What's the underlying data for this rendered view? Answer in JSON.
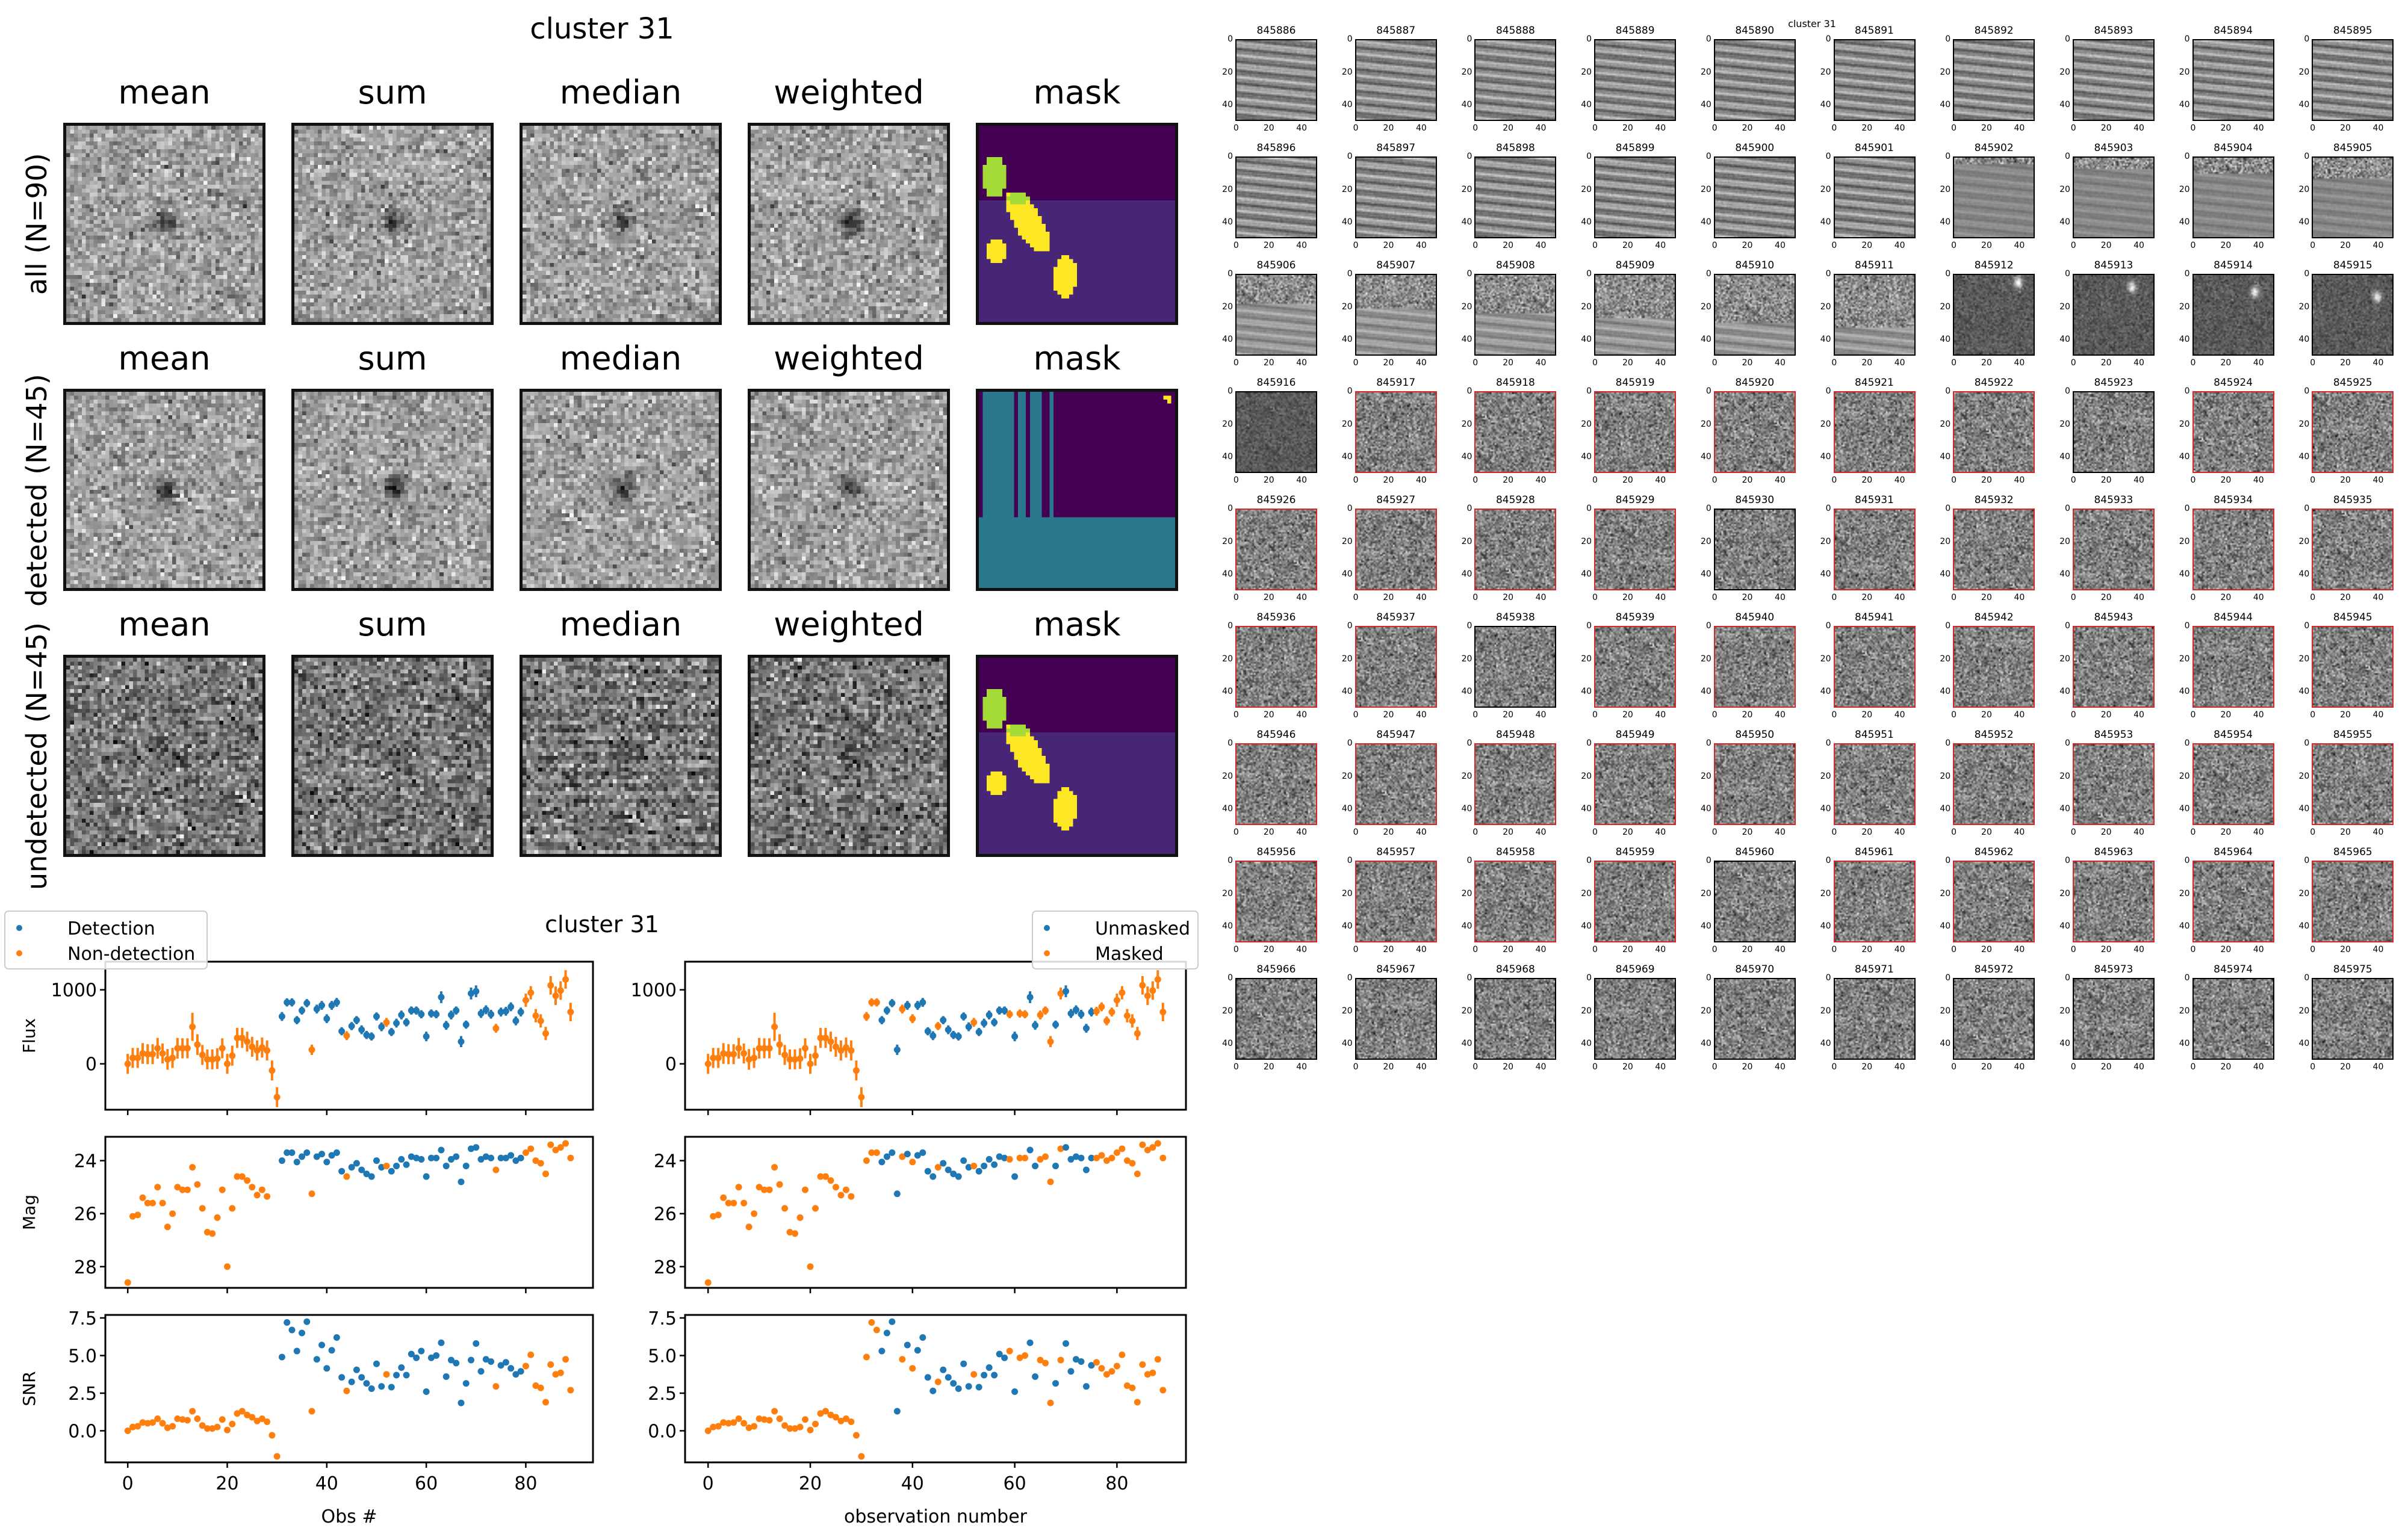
{
  "figure": {
    "title": "cluster 31",
    "grid_title": "cluster 31"
  },
  "stamps": {
    "columns": [
      "mean",
      "sum",
      "median",
      "weighted",
      "mask"
    ],
    "rows": [
      {
        "label": "all (N=90)",
        "mask_style": "blobs"
      },
      {
        "label": "detected (N=45)",
        "mask_style": "stripes"
      },
      {
        "label": "undetected (N=45)",
        "mask_style": "blobs"
      }
    ],
    "colors": {
      "mask_bg_dark": "#440154",
      "mask_bg_mid": "#482677",
      "mask_teal": "#2a788e",
      "mask_green": "#a5db36",
      "mask_yellow": "#fde725"
    }
  },
  "chart_data": [
    {
      "type": "scatter",
      "panel": "left-flux",
      "ylabel": "Flux",
      "yticks": [
        0,
        1000
      ],
      "xlim": [
        -4.5,
        93.5
      ],
      "ylim": [
        -620,
        1380
      ],
      "legend": {
        "position": "top-left",
        "entries": [
          "Detection",
          "Non-detection"
        ]
      },
      "series_colors": {
        "Detection": "#1f77b4",
        "Non-detection": "#ff7f0e"
      }
    },
    {
      "type": "scatter",
      "panel": "left-mag",
      "ylabel": "Mag",
      "yticks": [
        24,
        26,
        28
      ],
      "ylim_inverted": [
        28.8,
        23.1
      ]
    },
    {
      "type": "scatter",
      "panel": "left-snr",
      "ylabel": "SNR",
      "xlabel": "Obs #",
      "yticks": [
        0.0,
        2.5,
        5.0,
        7.5
      ],
      "xticks": [
        0,
        20,
        40,
        60,
        80
      ],
      "ylim": [
        -2.1,
        7.7
      ]
    },
    {
      "type": "scatter",
      "panel": "right-flux",
      "yticks": [
        0,
        1000
      ],
      "legend": {
        "position": "top-right",
        "entries": [
          "Unmasked",
          "Masked"
        ]
      },
      "series_colors": {
        "Unmasked": "#1f77b4",
        "Masked": "#ff7f0e"
      }
    },
    {
      "type": "scatter",
      "panel": "right-mag",
      "yticks": [
        24,
        26,
        28
      ]
    },
    {
      "type": "scatter",
      "panel": "right-snr",
      "xlabel": "observation number",
      "yticks": [
        0.0,
        2.5,
        5.0,
        7.5
      ],
      "xticks": [
        0,
        20,
        40,
        60,
        80
      ]
    },
    {
      "type": "scatter",
      "name": "lightcurve",
      "x": [
        0,
        1,
        2,
        3,
        4,
        5,
        6,
        7,
        8,
        9,
        10,
        11,
        12,
        13,
        14,
        15,
        16,
        17,
        18,
        19,
        20,
        21,
        22,
        23,
        24,
        25,
        26,
        27,
        28,
        29,
        30,
        31,
        32,
        33,
        34,
        35,
        36,
        37,
        38,
        39,
        40,
        41,
        42,
        43,
        44,
        45,
        46,
        47,
        48,
        49,
        50,
        51,
        52,
        53,
        54,
        55,
        56,
        57,
        58,
        59,
        60,
        61,
        62,
        63,
        64,
        65,
        66,
        67,
        68,
        69,
        70,
        71,
        72,
        73,
        74,
        75,
        76,
        77,
        78,
        79,
        80,
        81,
        82,
        83,
        84,
        85,
        86,
        87,
        88,
        89
      ],
      "flux": [
        0,
        80,
        80,
        140,
        130,
        130,
        210,
        140,
        60,
        80,
        210,
        210,
        210,
        500,
        260,
        120,
        60,
        60,
        70,
        210,
        0,
        110,
        350,
        350,
        300,
        230,
        180,
        220,
        180,
        -90,
        -450,
        640,
        830,
        830,
        590,
        720,
        820,
        190,
        740,
        790,
        610,
        790,
        830,
        440,
        380,
        510,
        590,
        460,
        390,
        370,
        640,
        500,
        560,
        430,
        550,
        660,
        560,
        720,
        720,
        670,
        370,
        680,
        670,
        900,
        520,
        660,
        720,
        300,
        530,
        950,
        980,
        680,
        730,
        670,
        480,
        700,
        710,
        770,
        580,
        700,
        860,
        960,
        650,
        580,
        410,
        1060,
        920,
        990,
        1140,
        700
      ],
      "flux_err": [
        270,
        270,
        270,
        280,
        270,
        270,
        280,
        270,
        280,
        270,
        280,
        270,
        270,
        380,
        280,
        270,
        270,
        270,
        280,
        270,
        270,
        270,
        270,
        270,
        270,
        270,
        270,
        270,
        270,
        270,
        270,
        120,
        110,
        110,
        110,
        110,
        110,
        140,
        120,
        120,
        120,
        120,
        120,
        110,
        120,
        110,
        110,
        120,
        110,
        110,
        110,
        120,
        120,
        110,
        120,
        120,
        110,
        110,
        110,
        110,
        130,
        110,
        110,
        160,
        120,
        120,
        110,
        150,
        110,
        160,
        160,
        120,
        120,
        120,
        120,
        120,
        120,
        120,
        120,
        120,
        180,
        180,
        180,
        180,
        180,
        250,
        250,
        250,
        250,
        250
      ],
      "mag": [
        28.6,
        26.1,
        26.05,
        25.4,
        25.6,
        25.6,
        25.0,
        25.6,
        26.5,
        26.0,
        25.0,
        25.1,
        25.1,
        24.25,
        24.9,
        25.8,
        26.7,
        26.75,
        26.15,
        25.1,
        28.0,
        25.8,
        24.6,
        24.6,
        24.75,
        25.0,
        25.3,
        25.1,
        25.35,
        null,
        null,
        24.0,
        23.7,
        23.7,
        24.05,
        23.85,
        23.7,
        25.25,
        23.85,
        23.75,
        24.05,
        23.8,
        23.7,
        24.4,
        24.6,
        24.25,
        24.1,
        24.35,
        24.5,
        24.6,
        24.0,
        24.25,
        24.2,
        24.4,
        24.2,
        23.95,
        24.15,
        23.85,
        23.9,
        23.95,
        24.6,
        23.9,
        23.9,
        23.6,
        24.2,
        23.95,
        23.85,
        24.8,
        24.2,
        23.55,
        23.5,
        23.95,
        23.85,
        23.9,
        24.35,
        23.9,
        23.9,
        23.8,
        24.0,
        23.9,
        23.7,
        23.55,
        24.0,
        24.1,
        24.5,
        23.4,
        23.6,
        23.5,
        23.35,
        23.9
      ],
      "snr": [
        0,
        0.25,
        0.3,
        0.55,
        0.5,
        0.55,
        0.8,
        0.5,
        0.2,
        0.3,
        0.8,
        0.75,
        0.7,
        1.3,
        0.8,
        0.35,
        0.15,
        0.15,
        0.25,
        0.75,
        0.05,
        0.45,
        1.15,
        1.3,
        1.05,
        0.9,
        0.65,
        0.8,
        0.6,
        -0.3,
        -1.7,
        4.9,
        7.2,
        6.7,
        5.3,
        6.5,
        7.25,
        1.3,
        4.75,
        5.7,
        4.15,
        5.35,
        6.2,
        3.55,
        2.65,
        3.25,
        4.05,
        3.55,
        3.15,
        2.8,
        4.45,
        2.95,
        3.75,
        2.9,
        3.7,
        4.2,
        3.7,
        5.1,
        4.85,
        5.3,
        2.6,
        4.85,
        5.0,
        5.85,
        3.6,
        4.7,
        4.5,
        1.85,
        3.15,
        4.7,
        5.8,
        3.95,
        4.75,
        4.6,
        2.95,
        4.35,
        4.55,
        4.15,
        3.75,
        3.95,
        4.3,
        5.05,
        3.0,
        2.85,
        1.9,
        4.4,
        3.75,
        3.85,
        4.75,
        2.7
      ],
      "detected": [
        0,
        0,
        0,
        0,
        0,
        0,
        0,
        0,
        0,
        0,
        0,
        0,
        0,
        0,
        0,
        0,
        0,
        0,
        0,
        0,
        0,
        0,
        0,
        0,
        0,
        0,
        0,
        0,
        0,
        0,
        0,
        1,
        1,
        1,
        1,
        1,
        1,
        0,
        1,
        1,
        1,
        1,
        1,
        1,
        0,
        1,
        1,
        1,
        1,
        1,
        1,
        1,
        0,
        1,
        1,
        1,
        1,
        1,
        1,
        1,
        1,
        1,
        1,
        1,
        1,
        1,
        1,
        1,
        1,
        1,
        1,
        1,
        1,
        1,
        0,
        1,
        1,
        1,
        1,
        1,
        0,
        0,
        0,
        0,
        0,
        0,
        0,
        0,
        0,
        0
      ],
      "masked": [
        1,
        1,
        1,
        1,
        1,
        1,
        1,
        1,
        1,
        1,
        1,
        1,
        1,
        1,
        1,
        1,
        1,
        1,
        1,
        1,
        1,
        1,
        1,
        1,
        1,
        1,
        1,
        1,
        1,
        1,
        1,
        1,
        1,
        1,
        0,
        0,
        0,
        0,
        1,
        0,
        1,
        0,
        0,
        0,
        0,
        1,
        0,
        0,
        0,
        0,
        0,
        0,
        1,
        0,
        0,
        0,
        0,
        0,
        0,
        1,
        0,
        1,
        1,
        0,
        0,
        1,
        1,
        1,
        0,
        1,
        0,
        0,
        0,
        0,
        0,
        0,
        1,
        1,
        1,
        1,
        1,
        1,
        1,
        1,
        1,
        1,
        1,
        1,
        1,
        1
      ]
    }
  ],
  "thumbnails": {
    "axis_ticks_x": [
      "0",
      "20",
      "40"
    ],
    "axis_ticks_y": [
      "0",
      "20",
      "40"
    ],
    "flag_color": "#d62728",
    "items": [
      {
        "id": "845886",
        "style": "streak",
        "flag": false
      },
      {
        "id": "845887",
        "style": "streak",
        "flag": false
      },
      {
        "id": "845888",
        "style": "streak",
        "flag": false
      },
      {
        "id": "845889",
        "style": "streak",
        "flag": false
      },
      {
        "id": "845890",
        "style": "streak",
        "flag": false
      },
      {
        "id": "845891",
        "style": "streak",
        "flag": false
      },
      {
        "id": "845892",
        "style": "streak",
        "flag": false
      },
      {
        "id": "845893",
        "style": "streak",
        "flag": false
      },
      {
        "id": "845894",
        "style": "streak",
        "flag": false
      },
      {
        "id": "845895",
        "style": "streak",
        "flag": false
      },
      {
        "id": "845896",
        "style": "streak",
        "flag": false
      },
      {
        "id": "845897",
        "style": "streak",
        "flag": false
      },
      {
        "id": "845898",
        "style": "streak",
        "flag": false
      },
      {
        "id": "845899",
        "style": "streak",
        "flag": false
      },
      {
        "id": "845900",
        "style": "streak",
        "flag": false
      },
      {
        "id": "845901",
        "style": "streak",
        "flag": false
      },
      {
        "id": "845902",
        "style": "smooth",
        "flag": false
      },
      {
        "id": "845903",
        "style": "smooth",
        "flag": false
      },
      {
        "id": "845904",
        "style": "smooth",
        "flag": false
      },
      {
        "id": "845905",
        "style": "smooth",
        "flag": false
      },
      {
        "id": "845906",
        "style": "half",
        "flag": false
      },
      {
        "id": "845907",
        "style": "half",
        "flag": false
      },
      {
        "id": "845908",
        "style": "half",
        "flag": false
      },
      {
        "id": "845909",
        "style": "half",
        "flag": false
      },
      {
        "id": "845910",
        "style": "half",
        "flag": false
      },
      {
        "id": "845911",
        "style": "half",
        "flag": false
      },
      {
        "id": "845912",
        "style": "star",
        "flag": false
      },
      {
        "id": "845913",
        "style": "star",
        "flag": false
      },
      {
        "id": "845914",
        "style": "star",
        "flag": false
      },
      {
        "id": "845915",
        "style": "star",
        "flag": false
      },
      {
        "id": "845916",
        "style": "star",
        "flag": false
      },
      {
        "id": "845917",
        "style": "noise",
        "flag": true
      },
      {
        "id": "845918",
        "style": "noise",
        "flag": true
      },
      {
        "id": "845919",
        "style": "noise",
        "flag": true
      },
      {
        "id": "845920",
        "style": "noise",
        "flag": true
      },
      {
        "id": "845921",
        "style": "noise",
        "flag": true
      },
      {
        "id": "845922",
        "style": "noise",
        "flag": true
      },
      {
        "id": "845923",
        "style": "noise",
        "flag": false
      },
      {
        "id": "845924",
        "style": "noise",
        "flag": true
      },
      {
        "id": "845925",
        "style": "noise",
        "flag": true
      },
      {
        "id": "845926",
        "style": "noise",
        "flag": true
      },
      {
        "id": "845927",
        "style": "noise",
        "flag": true
      },
      {
        "id": "845928",
        "style": "noise",
        "flag": true
      },
      {
        "id": "845929",
        "style": "noise",
        "flag": true
      },
      {
        "id": "845930",
        "style": "noise",
        "flag": false
      },
      {
        "id": "845931",
        "style": "noise",
        "flag": true
      },
      {
        "id": "845932",
        "style": "noise",
        "flag": true
      },
      {
        "id": "845933",
        "style": "noise",
        "flag": true
      },
      {
        "id": "845934",
        "style": "noise",
        "flag": true
      },
      {
        "id": "845935",
        "style": "noise",
        "flag": true
      },
      {
        "id": "845936",
        "style": "noise",
        "flag": true
      },
      {
        "id": "845937",
        "style": "noise",
        "flag": true
      },
      {
        "id": "845938",
        "style": "noise",
        "flag": false
      },
      {
        "id": "845939",
        "style": "noise",
        "flag": true
      },
      {
        "id": "845940",
        "style": "noise",
        "flag": true
      },
      {
        "id": "845941",
        "style": "noise",
        "flag": true
      },
      {
        "id": "845942",
        "style": "noise",
        "flag": true
      },
      {
        "id": "845943",
        "style": "noise",
        "flag": true
      },
      {
        "id": "845944",
        "style": "noise",
        "flag": true
      },
      {
        "id": "845945",
        "style": "noise",
        "flag": true
      },
      {
        "id": "845946",
        "style": "noise",
        "flag": true
      },
      {
        "id": "845947",
        "style": "noise",
        "flag": true
      },
      {
        "id": "845948",
        "style": "noise",
        "flag": true
      },
      {
        "id": "845949",
        "style": "noise",
        "flag": true
      },
      {
        "id": "845950",
        "style": "noise",
        "flag": true
      },
      {
        "id": "845951",
        "style": "noise",
        "flag": true
      },
      {
        "id": "845952",
        "style": "noise",
        "flag": true
      },
      {
        "id": "845953",
        "style": "noise",
        "flag": true
      },
      {
        "id": "845954",
        "style": "noise",
        "flag": true
      },
      {
        "id": "845955",
        "style": "noise",
        "flag": true
      },
      {
        "id": "845956",
        "style": "noise",
        "flag": true
      },
      {
        "id": "845957",
        "style": "noise",
        "flag": true
      },
      {
        "id": "845958",
        "style": "noise",
        "flag": true
      },
      {
        "id": "845959",
        "style": "noise",
        "flag": true
      },
      {
        "id": "845960",
        "style": "noise",
        "flag": false
      },
      {
        "id": "845961",
        "style": "noise",
        "flag": true
      },
      {
        "id": "845962",
        "style": "noise",
        "flag": true
      },
      {
        "id": "845963",
        "style": "noise",
        "flag": true
      },
      {
        "id": "845964",
        "style": "noise",
        "flag": true
      },
      {
        "id": "845965",
        "style": "noise",
        "flag": true
      },
      {
        "id": "845966",
        "style": "noise",
        "flag": false
      },
      {
        "id": "845967",
        "style": "noise",
        "flag": false
      },
      {
        "id": "845968",
        "style": "noise",
        "flag": false
      },
      {
        "id": "845969",
        "style": "noise",
        "flag": false
      },
      {
        "id": "845970",
        "style": "noise",
        "flag": false
      },
      {
        "id": "845971",
        "style": "noise",
        "flag": false
      },
      {
        "id": "845972",
        "style": "noise",
        "flag": false
      },
      {
        "id": "845973",
        "style": "noise",
        "flag": false
      },
      {
        "id": "845974",
        "style": "noise",
        "flag": false
      },
      {
        "id": "845975",
        "style": "noise",
        "flag": false
      }
    ]
  }
}
